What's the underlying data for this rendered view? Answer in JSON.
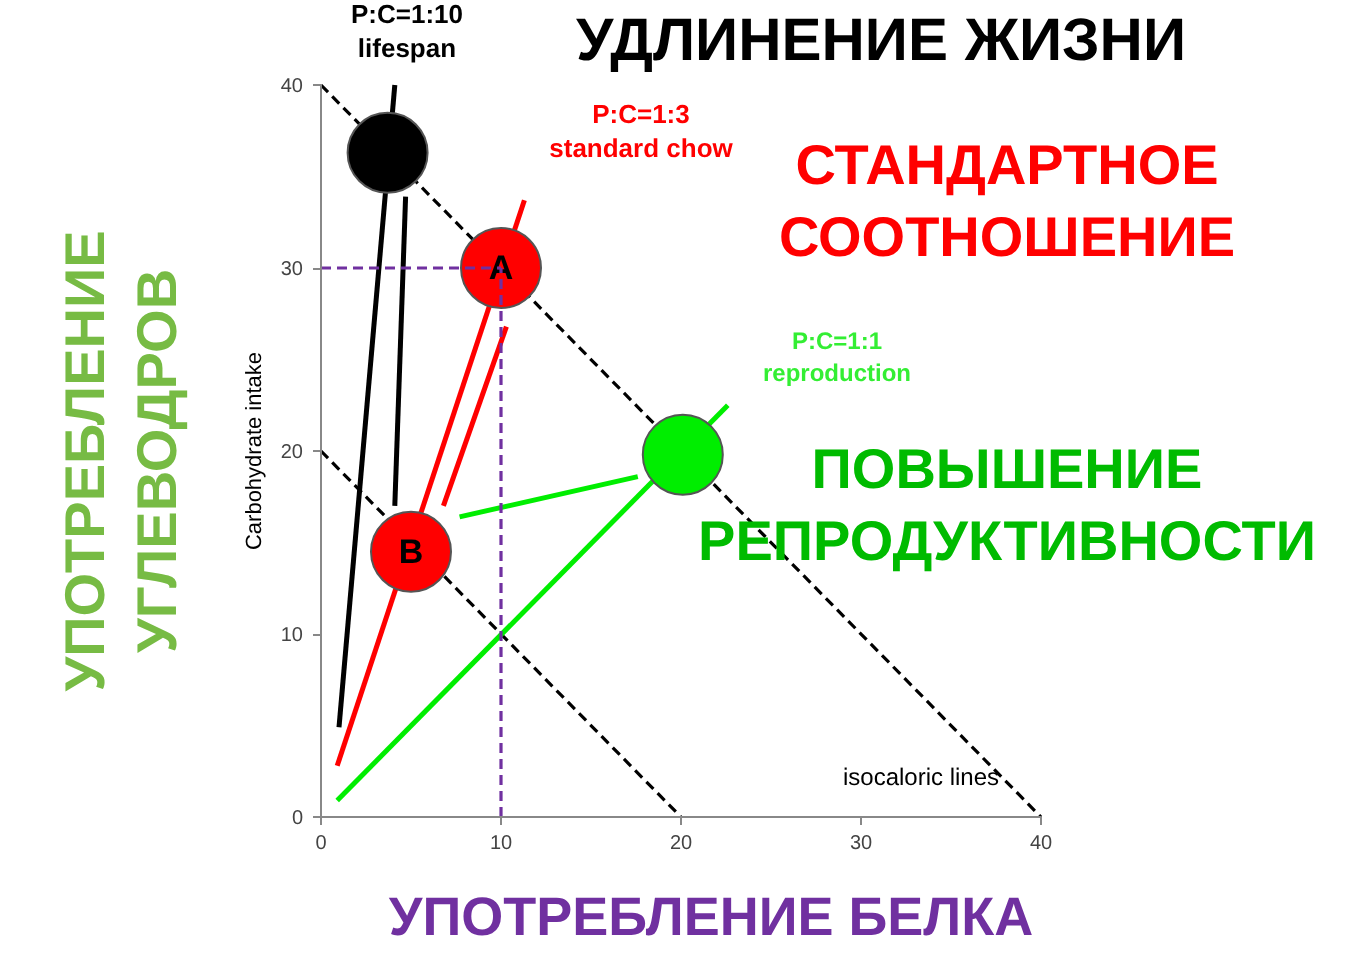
{
  "chart_data": {
    "type": "line",
    "title": "УДЛИНЕНИЕ ЖИЗНИ",
    "xlabel": "УПОТРЕБЛЕНИЕ БЕЛКА",
    "ylabel": "Carbohydrate intake",
    "xlim": [
      0,
      40
    ],
    "ylim": [
      0,
      40
    ],
    "xticks": [
      0,
      10,
      20,
      30,
      40
    ],
    "yticks": [
      0,
      10,
      20,
      30,
      40
    ],
    "series": [
      {
        "x": [
          0,
          40
        ],
        "values": [
          40,
          0
        ],
        "color": "#000000",
        "line_style": "dashed"
      },
      {
        "x": [
          0,
          20
        ],
        "values": [
          20,
          0
        ],
        "color": "#000000",
        "line_style": "dashed"
      },
      {
        "x": [
          1,
          4.1
        ],
        "values": [
          4.9,
          40
        ],
        "color": "#000000"
      },
      {
        "x": [
          0.9,
          11.3
        ],
        "values": [
          2.8,
          33.7
        ],
        "color": "#ff0000"
      },
      {
        "x": [
          0.9,
          22.6
        ],
        "values": [
          0.9,
          22.5
        ],
        "color": "#00ee00"
      },
      {
        "x": [
          4.7,
          4.1
        ],
        "values": [
          33.9,
          17.0
        ],
        "color": "#000000"
      },
      {
        "x": [
          10.3,
          6.8
        ],
        "values": [
          26.8,
          17.0
        ],
        "color": "#ff0000"
      },
      {
        "x": [
          17.6,
          7.7
        ],
        "values": [
          18.6,
          16.4
        ],
        "color": "#00ee00"
      },
      {
        "type": "scatter",
        "x": [
          3.7,
          10,
          5,
          20.1
        ],
        "values": [
          36.3,
          30,
          14.5,
          19.8
        ],
        "colors": [
          "#000000",
          "#ff0000",
          "#ff0000",
          "#00ee00"
        ],
        "value_labels": [
          null,
          "A",
          "B",
          null
        ]
      },
      {
        "x": [
          0,
          10
        ],
        "values": [
          30,
          30
        ],
        "color": "#7030a0",
        "line_style": "dashed"
      },
      {
        "x": [
          10,
          10
        ],
        "values": [
          0,
          30
        ],
        "color": "#7030a0",
        "line_style": "dashed"
      }
    ],
    "annotations": [
      "P:C=1:10\nlifespan",
      "P:C=1:3\nstandard chow",
      "P:C=1:1\nreproduction",
      "isocaloric lines",
      "СТАНДАРТНОЕ\nСООТНОШЕНИЕ",
      "ПОВЫШЕНИЕ\nРЕПРОДУКТИВНОСТИ",
      "УПОТРЕБЛЕНИЕ\nУГЛЕВОДРОВ"
    ]
  }
}
